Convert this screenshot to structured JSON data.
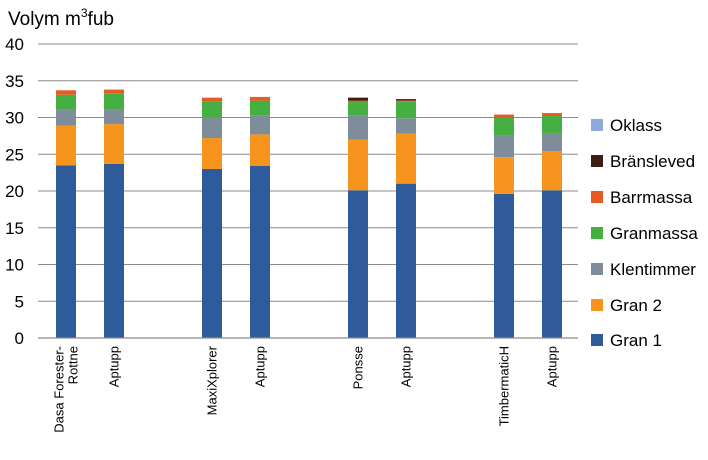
{
  "chart_data": {
    "type": "bar",
    "stacked": true,
    "title": "",
    "ylabel": "Volym m³fub",
    "ylabel_base": "Volym m",
    "ylabel_sup": "3",
    "ylabel_end": "fub",
    "ylim": [
      0,
      40
    ],
    "ytick_step": 5,
    "yticks": [
      "0",
      "5",
      "10",
      "15",
      "20",
      "25",
      "30",
      "35",
      "40"
    ],
    "grid": true,
    "legend_position": "right",
    "categories": [
      "Dasa Forester-Rottne",
      "Aptupp",
      "MaxiXplorer",
      "Aptupp",
      "Ponsse",
      "Aptupp",
      "TimbermaticH",
      "Aptupp"
    ],
    "category_lines": [
      [
        "Dasa Forester-",
        "Rottne"
      ],
      [
        "Aptupp"
      ],
      [
        "MaxiXplorer"
      ],
      [
        "Aptupp"
      ],
      [
        "Ponsse"
      ],
      [
        "Aptupp"
      ],
      [
        "TimbermaticH"
      ],
      [
        "Aptupp"
      ]
    ],
    "series": [
      {
        "name": "Gran 1",
        "color": "#2F5B9A",
        "values": [
          23.5,
          23.7,
          23.0,
          23.4,
          20.1,
          21.0,
          19.6,
          20.1
        ]
      },
      {
        "name": "Gran 2",
        "color": "#F7941D",
        "values": [
          5.4,
          5.4,
          4.2,
          4.3,
          6.9,
          6.8,
          5.0,
          5.3
        ]
      },
      {
        "name": "Klentimmer",
        "color": "#7F8C99",
        "values": [
          2.2,
          2.0,
          2.8,
          2.6,
          3.3,
          2.1,
          2.9,
          2.5
        ]
      },
      {
        "name": "Granmassa",
        "color": "#45B041",
        "values": [
          2.0,
          2.2,
          2.2,
          2.0,
          1.8,
          2.3,
          2.5,
          2.3
        ]
      },
      {
        "name": "Barrmassa",
        "color": "#E85A24",
        "values": [
          0.6,
          0.5,
          0.5,
          0.5,
          0.2,
          0.1,
          0.4,
          0.4
        ]
      },
      {
        "name": "Bränsleved",
        "color": "#3E1E12",
        "values": [
          0.0,
          0.0,
          0.0,
          0.0,
          0.4,
          0.2,
          0.0,
          0.0
        ]
      },
      {
        "name": "Oklass",
        "color": "#8EA9DB",
        "values": [
          0.0,
          0.0,
          0.0,
          0.0,
          0.0,
          0.0,
          0.0,
          0.0
        ]
      }
    ]
  }
}
